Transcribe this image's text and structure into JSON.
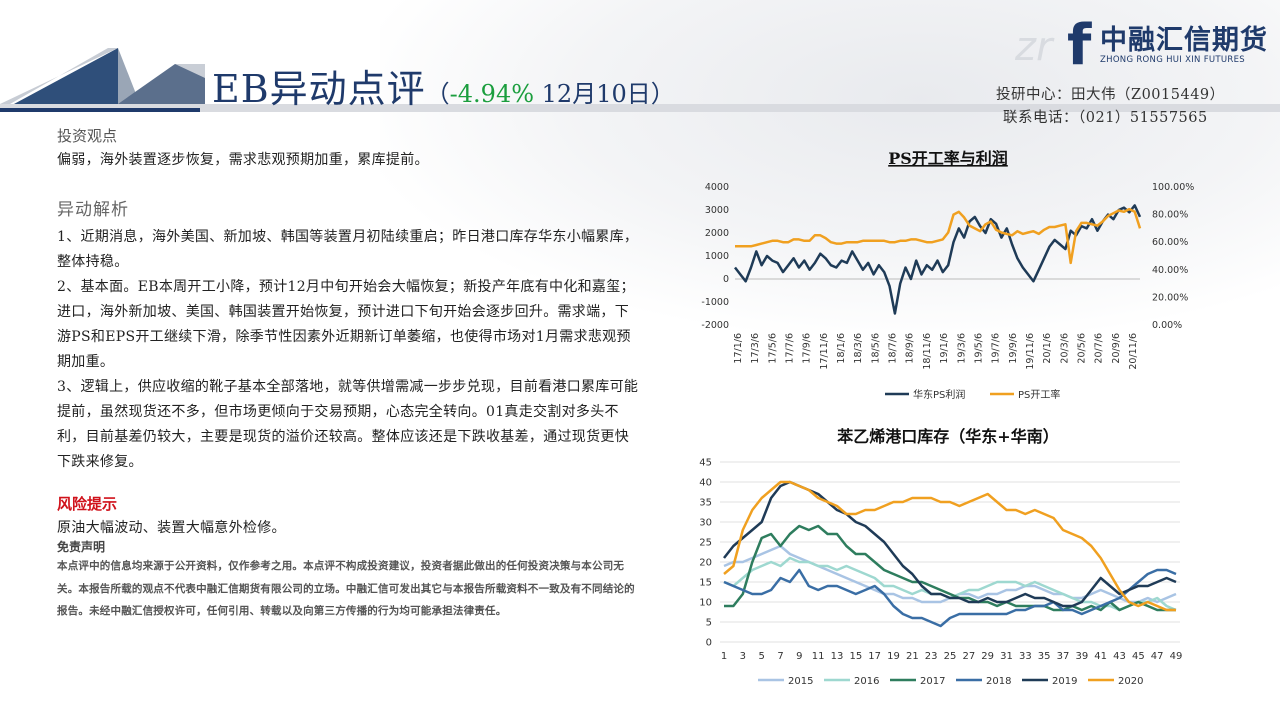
{
  "header": {
    "title_main": "EB异动点评",
    "title_open": "（",
    "title_pct": "-4.94%",
    "title_date": " 12月10日）",
    "logo_letter": "f",
    "logo_cn": "中融汇信期货",
    "logo_en": "ZHONG RONG HUI XIN FUTURES",
    "contact_line1": "投研中心：田大伟（Z0015449）",
    "contact_line2": "联系电话：（021）51557565"
  },
  "content": {
    "view_heading": "投资观点",
    "view_text": "偏弱，海外装置逐步恢复，需求悲观预期加重，累库提前。",
    "analysis_heading": "异动解析",
    "paragraphs": [
      "1、近期消息，海外美国、新加坡、韩国等装置月初陆续重启；昨日港口库存华东小幅累库，整体持稳。",
      "2、基本面。EB本周开工小降，预计12月中旬开始会大幅恢复；新投产年底有中化和嘉玺；进口，海外新加坡、美国、韩国装置开始恢复，预计进口下旬开始会逐步回升。需求端，下游PS和EPS开工继续下滑，除季节性因素外近期新订单萎缩，也使得市场对1月需求悲观预期加重。",
      "3、逻辑上，供应收缩的靴子基本全部落地，就等供增需减一步步兑现，目前看港口累库可能提前，虽然现货还不多，但市场更倾向于交易预期，心态完全转向。01真走交割对多头不利，目前基差仍较大，主要是现货的溢价还较高。整体应该还是下跌收基差，通过现货更快下跌来修复。"
    ],
    "risk_heading": "风险提示",
    "risk_text": "原油大幅波动、装置大幅意外检修。",
    "disclaimer_heading": "免责声明",
    "disclaimer_text": "本点评中的信息均来源于公开资料，仅作参考之用。本点评不构成投资建议，投资者据此做出的任何投资决策与本公司无关。本报告所载的观点不代表中融汇信期货有限公司的立场。中融汇信可发出其它与本报告所载资料不一致及有不同结论的报告。未经中融汇信授权许可，任何引用、转载以及向第三方传播的行为均可能承担法律责任。"
  },
  "chart_data": [
    {
      "type": "line",
      "title": "PS开工率与利润",
      "x_ticks": [
        "17/1/6",
        "17/3/6",
        "17/5/6",
        "17/7/6",
        "17/9/6",
        "17/11/6",
        "18/1/6",
        "18/3/6",
        "18/5/6",
        "18/7/6",
        "18/9/6",
        "18/11/6",
        "19/1/6",
        "19/3/6",
        "19/5/6",
        "19/7/6",
        "19/9/6",
        "19/11/6",
        "20/1/6",
        "20/3/6",
        "20/5/6",
        "20/7/6",
        "20/9/6",
        "20/11/6"
      ],
      "y_left": {
        "min": -2000,
        "max": 4000,
        "ticks": [
          "4000",
          "3000",
          "2000",
          "1000",
          "0",
          "-1000",
          "-2000"
        ]
      },
      "y_right": {
        "min": 0,
        "max": 100,
        "ticks": [
          "100.00%",
          "80.00%",
          "60.00%",
          "40.00%",
          "20.00%",
          "0.00%"
        ]
      },
      "legend_position": "bottom",
      "series": [
        {
          "name": "华东PS利润",
          "axis": "left",
          "color": "#1f3b57",
          "values": [
            500,
            200,
            -100,
            500,
            1200,
            600,
            1000,
            800,
            700,
            300,
            600,
            900,
            500,
            800,
            400,
            700,
            1100,
            900,
            600,
            500,
            800,
            700,
            1200,
            800,
            400,
            700,
            200,
            600,
            300,
            -300,
            -1500,
            -200,
            500,
            0,
            800,
            200,
            600,
            400,
            800,
            300,
            600,
            1600,
            2200,
            1800,
            2500,
            2700,
            2300,
            2000,
            2600,
            2400,
            1800,
            2200,
            1500,
            900,
            500,
            200,
            -100,
            400,
            900,
            1400,
            1700,
            1500,
            1300,
            2100,
            1900,
            2300,
            2200,
            2600,
            2100,
            2500,
            2800,
            2600,
            3000,
            3100,
            2900,
            3200,
            2700
          ]
        },
        {
          "name": "PS开工率",
          "axis": "right",
          "color": "#f0a020",
          "values": [
            57,
            57,
            57,
            57,
            58,
            59,
            60,
            61,
            61,
            60,
            60,
            62,
            62,
            61,
            61,
            65,
            65,
            63,
            60,
            59,
            59,
            60,
            60,
            60,
            61,
            61,
            61,
            61,
            61,
            60,
            60,
            61,
            61,
            62,
            62,
            61,
            60,
            60,
            61,
            62,
            67,
            80,
            82,
            78,
            72,
            70,
            68,
            73,
            75,
            69,
            67,
            66,
            65,
            68,
            66,
            67,
            68,
            66,
            69,
            71,
            71,
            72,
            73,
            45,
            68,
            74,
            74,
            73,
            72,
            75,
            79,
            81,
            83,
            82,
            84,
            82,
            70
          ]
        }
      ]
    },
    {
      "type": "line",
      "title": "苯乙烯港口库存（华东+华南）",
      "x_ticks": [
        "1",
        "3",
        "5",
        "7",
        "9",
        "11",
        "13",
        "15",
        "17",
        "19",
        "21",
        "23",
        "25",
        "27",
        "29",
        "31",
        "33",
        "35",
        "37",
        "39",
        "41",
        "43",
        "45",
        "47",
        "49"
      ],
      "ylim": [
        0,
        45
      ],
      "y_ticks": [
        "45",
        "40",
        "35",
        "30",
        "25",
        "20",
        "15",
        "10",
        "5",
        "0"
      ],
      "legend_position": "bottom",
      "series": [
        {
          "name": "2015",
          "color": "#a9c4e4",
          "values": [
            19,
            20,
            20,
            21,
            22,
            23,
            24,
            22,
            21,
            20,
            19,
            18,
            17,
            16,
            15,
            14,
            13,
            12,
            12,
            11,
            11,
            10,
            10,
            10,
            11,
            12,
            12,
            11,
            12,
            12,
            13,
            13,
            14,
            14,
            13,
            12,
            12,
            11,
            11,
            12,
            13,
            12,
            11,
            10,
            10,
            11,
            10,
            11,
            12
          ]
        },
        {
          "name": "2016",
          "color": "#9ed8d0",
          "values": [
            15,
            14,
            16,
            18,
            19,
            20,
            19,
            21,
            20,
            20,
            19,
            19,
            18,
            19,
            18,
            17,
            16,
            14,
            14,
            13,
            12,
            13,
            12,
            12,
            11,
            12,
            13,
            13,
            14,
            15,
            15,
            15,
            14,
            15,
            14,
            13,
            12,
            11,
            10,
            10,
            9,
            9,
            8,
            9,
            10,
            10,
            11,
            9,
            8
          ]
        },
        {
          "name": "2017",
          "color": "#2e7d5e",
          "values": [
            9,
            9,
            12,
            20,
            26,
            27,
            24,
            27,
            29,
            28,
            29,
            27,
            27,
            24,
            22,
            22,
            20,
            18,
            17,
            16,
            15,
            15,
            14,
            13,
            12,
            11,
            11,
            10,
            10,
            9,
            10,
            9,
            9,
            9,
            9,
            8,
            8,
            9,
            8,
            9,
            8,
            10,
            8,
            9,
            10,
            9,
            8,
            8,
            8
          ]
        },
        {
          "name": "2018",
          "color": "#3a6ea5",
          "values": [
            15,
            14,
            13,
            12,
            12,
            13,
            16,
            15,
            18,
            14,
            13,
            14,
            14,
            13,
            12,
            13,
            14,
            12,
            9,
            7,
            6,
            6,
            5,
            4,
            6,
            7,
            7,
            7,
            7,
            7,
            7,
            8,
            8,
            9,
            9,
            10,
            8,
            8,
            7,
            8,
            9,
            10,
            11,
            13,
            15,
            17,
            18,
            18,
            17
          ]
        },
        {
          "name": "2019",
          "color": "#1f3b57",
          "values": [
            21,
            24,
            26,
            28,
            30,
            36,
            39,
            40,
            39,
            38,
            37,
            35,
            33,
            32,
            30,
            29,
            27,
            25,
            22,
            19,
            17,
            14,
            12,
            12,
            11,
            11,
            10,
            10,
            11,
            10,
            10,
            11,
            12,
            11,
            11,
            10,
            9,
            9,
            10,
            13,
            16,
            14,
            12,
            13,
            14,
            14,
            15,
            16,
            15
          ]
        },
        {
          "name": "2020",
          "color": "#f0a020",
          "values": [
            17,
            19,
            28,
            33,
            36,
            38,
            40,
            40,
            39,
            38,
            36,
            35,
            34,
            32,
            32,
            33,
            33,
            34,
            35,
            35,
            36,
            36,
            36,
            35,
            35,
            34,
            35,
            36,
            37,
            35,
            33,
            33,
            32,
            33,
            32,
            31,
            28,
            27,
            26,
            24,
            21,
            17,
            13,
            10,
            9,
            10,
            9,
            8,
            8
          ]
        }
      ]
    }
  ]
}
